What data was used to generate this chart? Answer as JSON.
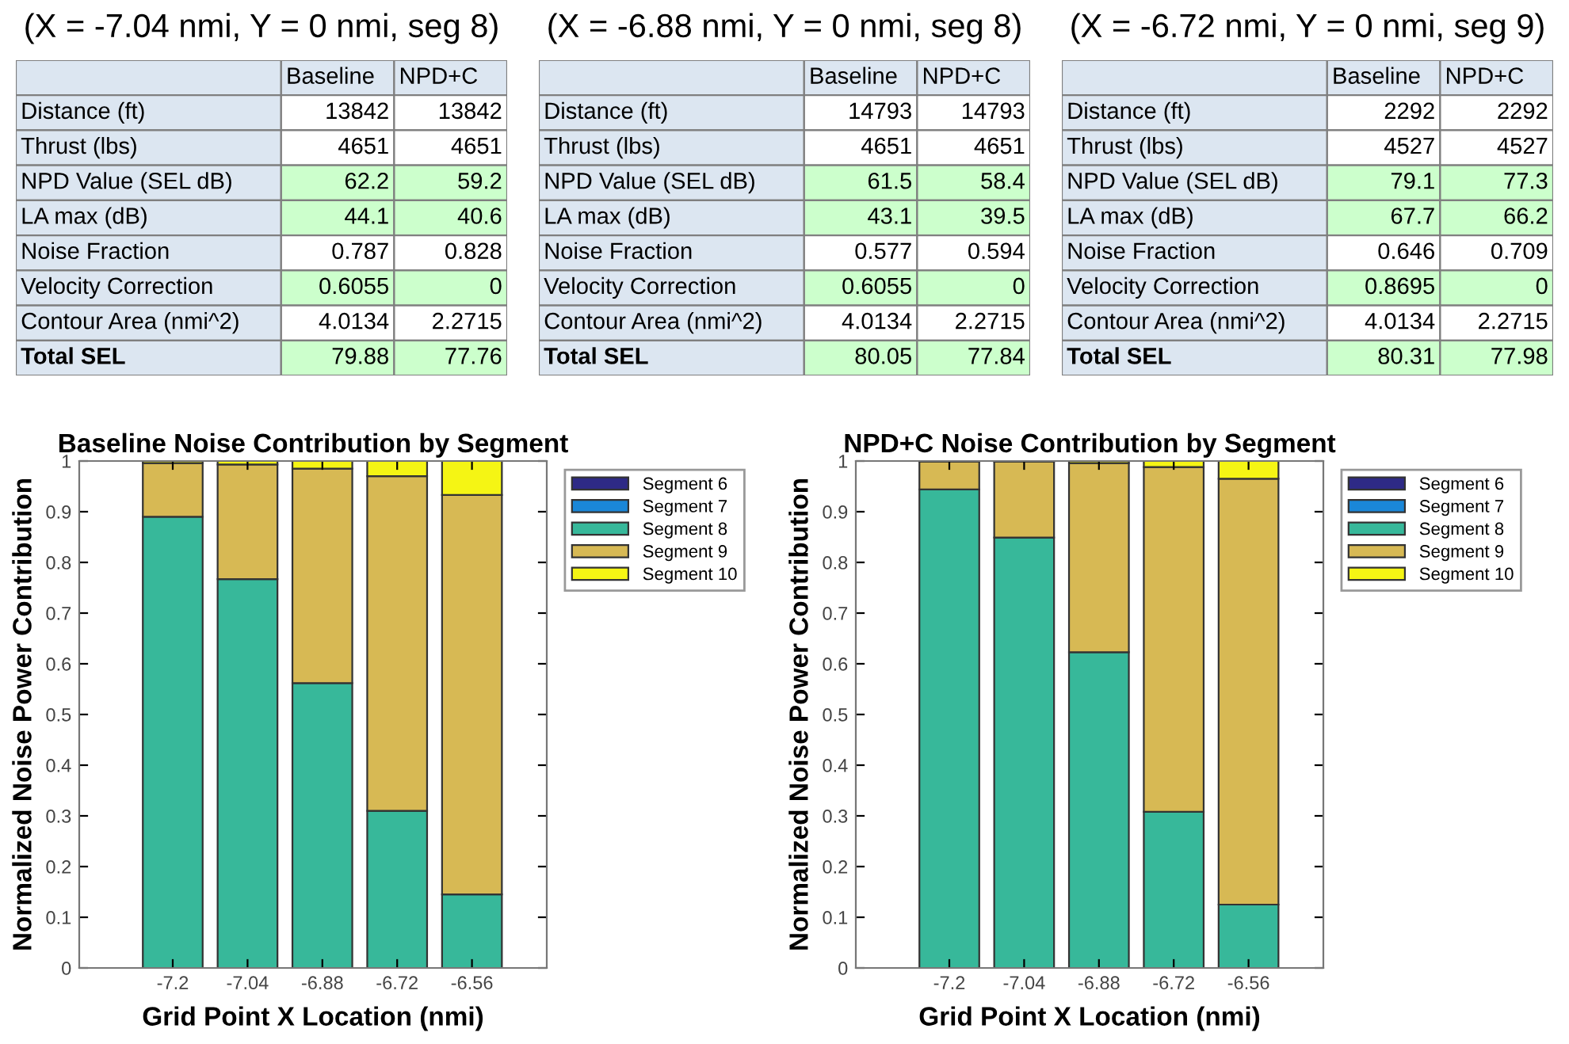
{
  "chart_data": [
    {
      "type": "other",
      "title": "(X = -7.04 nmi, Y = 0 nmi, seg 8)",
      "categories": [
        "Baseline",
        "NPD+C"
      ],
      "y_categories": [
        "Distance (ft)",
        "Thrust (lbs)",
        "NPD Value (SEL dB)",
        "LA max (dB)",
        "Noise Fraction",
        "Velocity Correction",
        "Contour Area (nmi^2)",
        "Total SEL"
      ],
      "cell_labels": [
        [
          "13842",
          "13842"
        ],
        [
          "4651",
          "4651"
        ],
        [
          "62.2",
          "59.2"
        ],
        [
          "44.1",
          "40.6"
        ],
        [
          "0.787",
          "0.828"
        ],
        [
          "0.6055",
          "0"
        ],
        [
          "4.0134",
          "2.2715"
        ],
        [
          "79.88",
          "77.76"
        ]
      ],
      "colors": [
        "#dce6f1",
        "#dce6f1",
        "#ffffff",
        "#ffffff",
        "#ffffff",
        "#ffffff",
        "#ccffcc",
        "#ccffcc",
        "#ccffcc",
        "#ccffcc",
        "#ffffff",
        "#ffffff",
        "#ccffcc",
        "#ccffcc",
        "#ffffff",
        "#ffffff",
        "#ccffcc",
        "#ccffcc"
      ]
    },
    {
      "type": "other",
      "title": "(X = -6.88 nmi, Y = 0 nmi, seg 8)",
      "categories": [
        "Baseline",
        "NPD+C"
      ],
      "y_categories": [
        "Distance (ft)",
        "Thrust (lbs)",
        "NPD Value (SEL dB)",
        "LA max (dB)",
        "Noise Fraction",
        "Velocity Correction",
        "Contour Area (nmi^2)",
        "Total SEL"
      ],
      "cell_labels": [
        [
          "14793",
          "14793"
        ],
        [
          "4651",
          "4651"
        ],
        [
          "61.5",
          "58.4"
        ],
        [
          "43.1",
          "39.5"
        ],
        [
          "0.577",
          "0.594"
        ],
        [
          "0.6055",
          "0"
        ],
        [
          "4.0134",
          "2.2715"
        ],
        [
          "80.05",
          "77.84"
        ]
      ],
      "colors": [
        "#dce6f1",
        "#dce6f1",
        "#ffffff",
        "#ffffff",
        "#ffffff",
        "#ffffff",
        "#ccffcc",
        "#ccffcc",
        "#ccffcc",
        "#ccffcc",
        "#ffffff",
        "#ffffff",
        "#ccffcc",
        "#ccffcc",
        "#ffffff",
        "#ffffff",
        "#ccffcc",
        "#ccffcc"
      ]
    },
    {
      "type": "other",
      "title": "(X = -6.72 nmi, Y = 0 nmi, seg 9)",
      "categories": [
        "Baseline",
        "NPD+C"
      ],
      "y_categories": [
        "Distance (ft)",
        "Thrust (lbs)",
        "NPD Value (SEL dB)",
        "LA max (dB)",
        "Noise Fraction",
        "Velocity Correction",
        "Contour Area (nmi^2)",
        "Total SEL"
      ],
      "cell_labels": [
        [
          "2292",
          "2292"
        ],
        [
          "4527",
          "4527"
        ],
        [
          "79.1",
          "77.3"
        ],
        [
          "67.7",
          "66.2"
        ],
        [
          "0.646",
          "0.709"
        ],
        [
          "0.8695",
          "0"
        ],
        [
          "4.0134",
          "2.2715"
        ],
        [
          "80.31",
          "77.98"
        ]
      ],
      "colors": [
        "#dce6f1",
        "#dce6f1",
        "#ffffff",
        "#ffffff",
        "#ffffff",
        "#ffffff",
        "#ccffcc",
        "#ccffcc",
        "#ccffcc",
        "#ccffcc",
        "#ffffff",
        "#ffffff",
        "#ccffcc",
        "#ccffcc",
        "#ffffff",
        "#ffffff",
        "#ccffcc",
        "#ccffcc"
      ]
    },
    {
      "type": "bar",
      "stacked": true,
      "title": "Baseline Noise Contribution by Segment",
      "xlabel": "Grid Point X Location (nmi)",
      "ylabel": "Normalized Noise Power Contribution",
      "x": [
        -7.2,
        -7.04,
        -6.88,
        -6.72,
        -6.56
      ],
      "xlim": [
        -7.4,
        -6.4
      ],
      "xticks": [
        -7.2,
        -7.04,
        -6.88,
        -6.72,
        -6.56
      ],
      "ylim": [
        0,
        1
      ],
      "yticks": [
        0,
        0.1,
        0.2,
        0.3,
        0.4,
        0.5,
        0.6,
        0.7,
        0.8,
        0.9,
        1
      ],
      "grid": false,
      "legend": "right",
      "series": [
        {
          "name": "Segment 6",
          "color": "#2e2a86",
          "values": [
            0,
            0,
            0,
            0,
            0
          ]
        },
        {
          "name": "Segment 7",
          "color": "#1a87d8",
          "values": [
            0,
            0,
            0,
            0,
            0
          ]
        },
        {
          "name": "Segment 8",
          "color": "#37b89a",
          "values": [
            0.89,
            0.767,
            0.562,
            0.31,
            0.145
          ]
        },
        {
          "name": "Segment 9",
          "color": "#d7b954",
          "values": [
            0.106,
            0.226,
            0.423,
            0.66,
            0.788
          ]
        },
        {
          "name": "Segment 10",
          "color": "#f5f514",
          "values": [
            0.004,
            0.007,
            0.015,
            0.03,
            0.067
          ]
        }
      ]
    },
    {
      "type": "bar",
      "stacked": true,
      "title": "NPD+C Noise Contribution by Segment",
      "xlabel": "Grid Point X Location (nmi)",
      "ylabel": "Normalized Noise Power Contribution",
      "x": [
        -7.2,
        -7.04,
        -6.88,
        -6.72,
        -6.56
      ],
      "xlim": [
        -7.4,
        -6.4
      ],
      "xticks": [
        -7.2,
        -7.04,
        -6.88,
        -6.72,
        -6.56
      ],
      "ylim": [
        0,
        1
      ],
      "yticks": [
        0,
        0.1,
        0.2,
        0.3,
        0.4,
        0.5,
        0.6,
        0.7,
        0.8,
        0.9,
        1
      ],
      "grid": false,
      "legend": "right",
      "series": [
        {
          "name": "Segment 6",
          "color": "#2e2a86",
          "values": [
            0,
            0,
            0,
            0,
            0
          ]
        },
        {
          "name": "Segment 7",
          "color": "#1a87d8",
          "values": [
            0,
            0,
            0,
            0,
            0
          ]
        },
        {
          "name": "Segment 8",
          "color": "#37b89a",
          "values": [
            0.944,
            0.849,
            0.623,
            0.308,
            0.125
          ]
        },
        {
          "name": "Segment 9",
          "color": "#d7b954",
          "values": [
            0.055,
            0.15,
            0.373,
            0.68,
            0.84
          ]
        },
        {
          "name": "Segment 10",
          "color": "#f5f514",
          "values": [
            0.001,
            0.001,
            0.004,
            0.012,
            0.035
          ]
        }
      ]
    }
  ]
}
